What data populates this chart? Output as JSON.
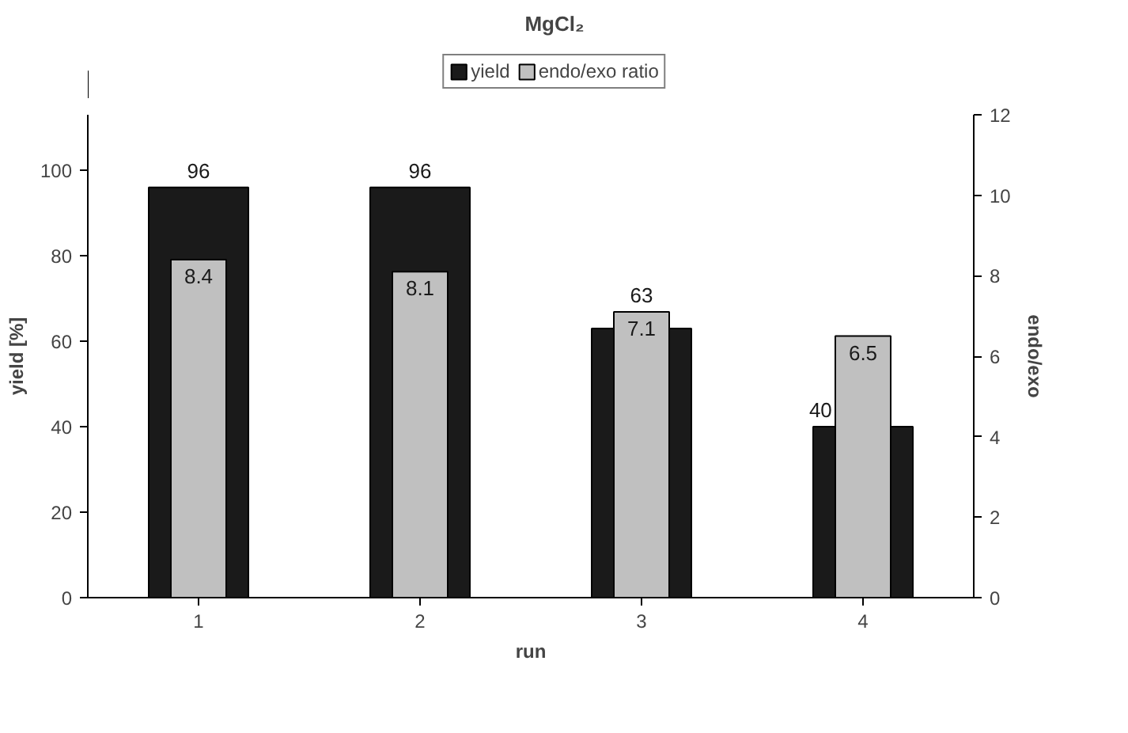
{
  "chart_data": {
    "type": "bar",
    "title": "MgCl₂",
    "xlabel": "run",
    "ylabel": "yield [%]",
    "y2label": "endo/exo",
    "categories": [
      "1",
      "2",
      "3",
      "4"
    ],
    "series": [
      {
        "name": "yield",
        "color": "#1a1a1a",
        "values": [
          96,
          96,
          63,
          40
        ]
      },
      {
        "name": "endo/exo ratio",
        "color": "#c0c0c0",
        "values": [
          8.4,
          8.1,
          7.1,
          6.5
        ],
        "axis": "y2"
      }
    ],
    "ylim": [
      0,
      113
    ],
    "yticks": [
      0,
      20,
      40,
      60,
      80,
      100
    ],
    "y2lim": [
      0,
      12
    ],
    "y2ticks": [
      0,
      2,
      4,
      6,
      8,
      10,
      12
    ],
    "data_labels": true,
    "grid": false,
    "legend": "top"
  }
}
